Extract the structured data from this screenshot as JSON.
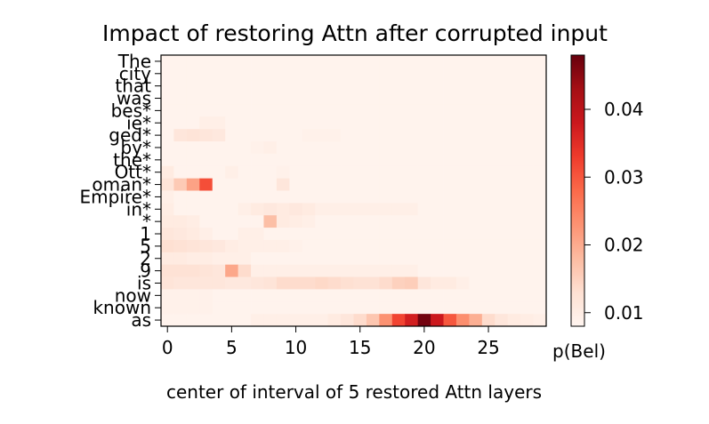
{
  "chart_data": {
    "type": "heatmap",
    "title": "Impact of restoring Attn after corrupted input",
    "xlabel": "center of interval of 5 restored Attn layers",
    "ylabel": "",
    "x_ticks": [
      0,
      5,
      10,
      15,
      20,
      25
    ],
    "x_range": [
      0,
      29
    ],
    "y_tokens": [
      "The",
      "city",
      "that",
      "was",
      "bes*",
      "ie*",
      "ged*",
      "by*",
      "the*",
      "Ott*",
      "oman*",
      "Empire*",
      "in*",
      "*",
      "1",
      "5",
      "2",
      "9",
      "is",
      "now",
      "known",
      "as"
    ],
    "colorbar": {
      "label": "p(Bel)",
      "ticks": [
        0.01,
        0.02,
        0.03,
        0.04
      ],
      "min": 0.008,
      "max": 0.048,
      "colormap": "Reds"
    },
    "baseline": 0.0085,
    "hotspots": [
      {
        "row": 5,
        "x": 3,
        "value": 0.0095
      },
      {
        "row": 5,
        "x": 4,
        "value": 0.0095
      },
      {
        "row": 6,
        "x": 1,
        "value": 0.0115
      },
      {
        "row": 6,
        "x": 2,
        "value": 0.012
      },
      {
        "row": 6,
        "x": 3,
        "value": 0.0115
      },
      {
        "row": 6,
        "x": 4,
        "value": 0.011
      },
      {
        "row": 6,
        "x": 11,
        "value": 0.009
      },
      {
        "row": 6,
        "x": 12,
        "value": 0.009
      },
      {
        "row": 6,
        "x": 13,
        "value": 0.009
      },
      {
        "row": 7,
        "x": 7,
        "value": 0.009
      },
      {
        "row": 7,
        "x": 8,
        "value": 0.0095
      },
      {
        "row": 9,
        "x": 0,
        "value": 0.0105
      },
      {
        "row": 9,
        "x": 5,
        "value": 0.0095
      },
      {
        "row": 9,
        "x": 9,
        "value": 0.009
      },
      {
        "row": 10,
        "x": 0,
        "value": 0.012
      },
      {
        "row": 10,
        "x": 1,
        "value": 0.016
      },
      {
        "row": 10,
        "x": 2,
        "value": 0.021
      },
      {
        "row": 10,
        "x": 3,
        "value": 0.031
      },
      {
        "row": 10,
        "x": 9,
        "value": 0.0115
      },
      {
        "row": 11,
        "x": 0,
        "value": 0.0095
      },
      {
        "row": 12,
        "x": 0,
        "value": 0.01
      },
      {
        "row": 12,
        "x": 6,
        "value": 0.0095
      },
      {
        "row": 12,
        "x": 7,
        "value": 0.0105
      },
      {
        "row": 12,
        "x": 8,
        "value": 0.011
      },
      {
        "row": 12,
        "x": 9,
        "value": 0.0105
      },
      {
        "row": 12,
        "x": 10,
        "value": 0.011
      },
      {
        "row": 12,
        "x": 11,
        "value": 0.0105
      },
      {
        "row": 12,
        "x": 12,
        "value": 0.0095
      },
      {
        "row": 12,
        "x": 13,
        "value": 0.0095
      },
      {
        "row": 12,
        "x": 14,
        "value": 0.0095
      },
      {
        "row": 12,
        "x": 15,
        "value": 0.0095
      },
      {
        "row": 12,
        "x": 16,
        "value": 0.0095
      },
      {
        "row": 12,
        "x": 17,
        "value": 0.0095
      },
      {
        "row": 12,
        "x": 18,
        "value": 0.0095
      },
      {
        "row": 12,
        "x": 19,
        "value": 0.0095
      },
      {
        "row": 13,
        "x": 0,
        "value": 0.0105
      },
      {
        "row": 13,
        "x": 1,
        "value": 0.0105
      },
      {
        "row": 13,
        "x": 2,
        "value": 0.01
      },
      {
        "row": 13,
        "x": 8,
        "value": 0.0175
      },
      {
        "row": 13,
        "x": 9,
        "value": 0.0105
      },
      {
        "row": 13,
        "x": 10,
        "value": 0.01
      },
      {
        "row": 13,
        "x": 11,
        "value": 0.0095
      },
      {
        "row": 14,
        "x": 0,
        "value": 0.0115
      },
      {
        "row": 14,
        "x": 1,
        "value": 0.011
      },
      {
        "row": 14,
        "x": 2,
        "value": 0.0105
      },
      {
        "row": 14,
        "x": 3,
        "value": 0.0095
      },
      {
        "row": 14,
        "x": 6,
        "value": 0.0095
      },
      {
        "row": 14,
        "x": 7,
        "value": 0.0095
      },
      {
        "row": 15,
        "x": 0,
        "value": 0.013
      },
      {
        "row": 15,
        "x": 1,
        "value": 0.0125
      },
      {
        "row": 15,
        "x": 2,
        "value": 0.012
      },
      {
        "row": 15,
        "x": 3,
        "value": 0.0115
      },
      {
        "row": 15,
        "x": 4,
        "value": 0.011
      },
      {
        "row": 15,
        "x": 5,
        "value": 0.01
      },
      {
        "row": 15,
        "x": 6,
        "value": 0.0095
      },
      {
        "row": 15,
        "x": 7,
        "value": 0.0095
      },
      {
        "row": 15,
        "x": 8,
        "value": 0.0095
      },
      {
        "row": 15,
        "x": 9,
        "value": 0.0095
      },
      {
        "row": 15,
        "x": 10,
        "value": 0.009
      },
      {
        "row": 16,
        "x": 0,
        "value": 0.0105
      },
      {
        "row": 16,
        "x": 1,
        "value": 0.0105
      },
      {
        "row": 16,
        "x": 2,
        "value": 0.01
      },
      {
        "row": 16,
        "x": 3,
        "value": 0.01
      },
      {
        "row": 16,
        "x": 4,
        "value": 0.0095
      },
      {
        "row": 16,
        "x": 5,
        "value": 0.0095
      },
      {
        "row": 16,
        "x": 6,
        "value": 0.0095
      },
      {
        "row": 17,
        "x": 0,
        "value": 0.0125
      },
      {
        "row": 17,
        "x": 1,
        "value": 0.0125
      },
      {
        "row": 17,
        "x": 2,
        "value": 0.0125
      },
      {
        "row": 17,
        "x": 3,
        "value": 0.012
      },
      {
        "row": 17,
        "x": 4,
        "value": 0.0115
      },
      {
        "row": 17,
        "x": 5,
        "value": 0.0205
      },
      {
        "row": 17,
        "x": 6,
        "value": 0.0135
      },
      {
        "row": 17,
        "x": 7,
        "value": 0.0095
      },
      {
        "row": 17,
        "x": 8,
        "value": 0.0095
      },
      {
        "row": 17,
        "x": 9,
        "value": 0.0095
      },
      {
        "row": 17,
        "x": 10,
        "value": 0.0095
      },
      {
        "row": 17,
        "x": 11,
        "value": 0.0095
      },
      {
        "row": 17,
        "x": 12,
        "value": 0.0095
      },
      {
        "row": 17,
        "x": 13,
        "value": 0.0095
      },
      {
        "row": 17,
        "x": 14,
        "value": 0.0095
      },
      {
        "row": 17,
        "x": 15,
        "value": 0.0095
      },
      {
        "row": 17,
        "x": 16,
        "value": 0.0095
      },
      {
        "row": 17,
        "x": 17,
        "value": 0.0095
      },
      {
        "row": 17,
        "x": 18,
        "value": 0.0095
      },
      {
        "row": 17,
        "x": 19,
        "value": 0.0095
      },
      {
        "row": 18,
        "x": 0,
        "value": 0.012
      },
      {
        "row": 18,
        "x": 1,
        "value": 0.0115
      },
      {
        "row": 18,
        "x": 2,
        "value": 0.0115
      },
      {
        "row": 18,
        "x": 3,
        "value": 0.0115
      },
      {
        "row": 18,
        "x": 4,
        "value": 0.0115
      },
      {
        "row": 18,
        "x": 5,
        "value": 0.011
      },
      {
        "row": 18,
        "x": 6,
        "value": 0.011
      },
      {
        "row": 18,
        "x": 7,
        "value": 0.0115
      },
      {
        "row": 18,
        "x": 8,
        "value": 0.012
      },
      {
        "row": 18,
        "x": 9,
        "value": 0.0135
      },
      {
        "row": 18,
        "x": 10,
        "value": 0.0135
      },
      {
        "row": 18,
        "x": 11,
        "value": 0.0135
      },
      {
        "row": 18,
        "x": 12,
        "value": 0.014
      },
      {
        "row": 18,
        "x": 13,
        "value": 0.0135
      },
      {
        "row": 18,
        "x": 14,
        "value": 0.013
      },
      {
        "row": 18,
        "x": 15,
        "value": 0.0125
      },
      {
        "row": 18,
        "x": 16,
        "value": 0.0125
      },
      {
        "row": 18,
        "x": 17,
        "value": 0.0135
      },
      {
        "row": 18,
        "x": 18,
        "value": 0.015
      },
      {
        "row": 18,
        "x": 19,
        "value": 0.0155
      },
      {
        "row": 18,
        "x": 20,
        "value": 0.0115
      },
      {
        "row": 18,
        "x": 21,
        "value": 0.0105
      },
      {
        "row": 18,
        "x": 22,
        "value": 0.0105
      },
      {
        "row": 18,
        "x": 23,
        "value": 0.0095
      },
      {
        "row": 19,
        "x": 0,
        "value": 0.009
      },
      {
        "row": 19,
        "x": 1,
        "value": 0.009
      },
      {
        "row": 19,
        "x": 2,
        "value": 0.009
      },
      {
        "row": 19,
        "x": 3,
        "value": 0.009
      },
      {
        "row": 20,
        "x": 0,
        "value": 0.009
      },
      {
        "row": 20,
        "x": 1,
        "value": 0.009
      },
      {
        "row": 20,
        "x": 2,
        "value": 0.009
      },
      {
        "row": 20,
        "x": 3,
        "value": 0.009
      },
      {
        "row": 21,
        "x": 7,
        "value": 0.0095
      },
      {
        "row": 21,
        "x": 8,
        "value": 0.0095
      },
      {
        "row": 21,
        "x": 9,
        "value": 0.0095
      },
      {
        "row": 21,
        "x": 10,
        "value": 0.0095
      },
      {
        "row": 21,
        "x": 11,
        "value": 0.0095
      },
      {
        "row": 21,
        "x": 12,
        "value": 0.0095
      },
      {
        "row": 21,
        "x": 13,
        "value": 0.0105
      },
      {
        "row": 21,
        "x": 14,
        "value": 0.0115
      },
      {
        "row": 21,
        "x": 15,
        "value": 0.0135
      },
      {
        "row": 21,
        "x": 16,
        "value": 0.0165
      },
      {
        "row": 21,
        "x": 17,
        "value": 0.023
      },
      {
        "row": 21,
        "x": 18,
        "value": 0.032
      },
      {
        "row": 21,
        "x": 19,
        "value": 0.037
      },
      {
        "row": 21,
        "x": 20,
        "value": 0.047
      },
      {
        "row": 21,
        "x": 21,
        "value": 0.038
      },
      {
        "row": 21,
        "x": 22,
        "value": 0.03
      },
      {
        "row": 21,
        "x": 23,
        "value": 0.0235
      },
      {
        "row": 21,
        "x": 24,
        "value": 0.0195
      },
      {
        "row": 21,
        "x": 25,
        "value": 0.0135
      },
      {
        "row": 21,
        "x": 26,
        "value": 0.0115
      },
      {
        "row": 21,
        "x": 27,
        "value": 0.0105
      },
      {
        "row": 21,
        "x": 28,
        "value": 0.01
      },
      {
        "row": 21,
        "x": 29,
        "value": 0.0095
      }
    ]
  }
}
